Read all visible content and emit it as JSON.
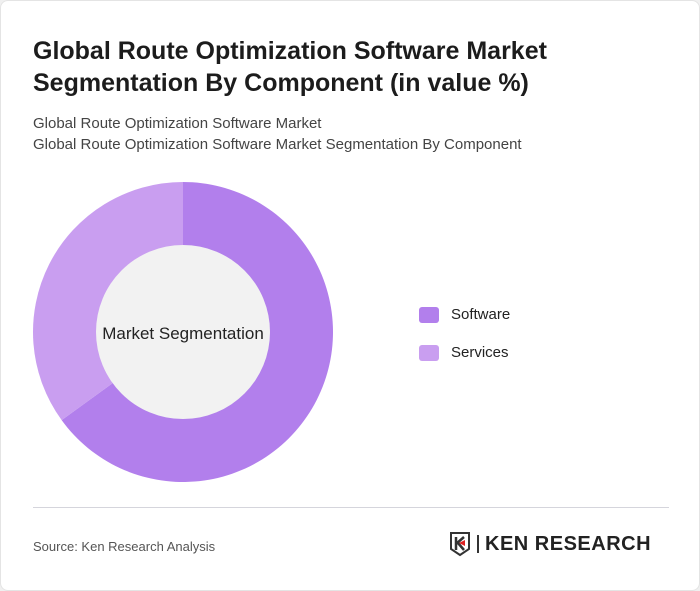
{
  "title": "Global Route Optimization Software Market Segmentation By Component (in value %)",
  "subtitle1": "Global Route Optimization Software Market",
  "subtitle2": "Global Route Optimization Software Market Segmentation By Component",
  "chart_data": {
    "type": "pie",
    "variant": "donut",
    "center_label": "Market Segmentation",
    "categories": [
      "Software",
      "Services"
    ],
    "values": [
      65,
      35
    ],
    "colors": [
      "#b27fec",
      "#c99ef0"
    ],
    "legend_position": "right"
  },
  "source": "Source: Ken Research Analysis",
  "logo_text": "KEN RESEARCH"
}
